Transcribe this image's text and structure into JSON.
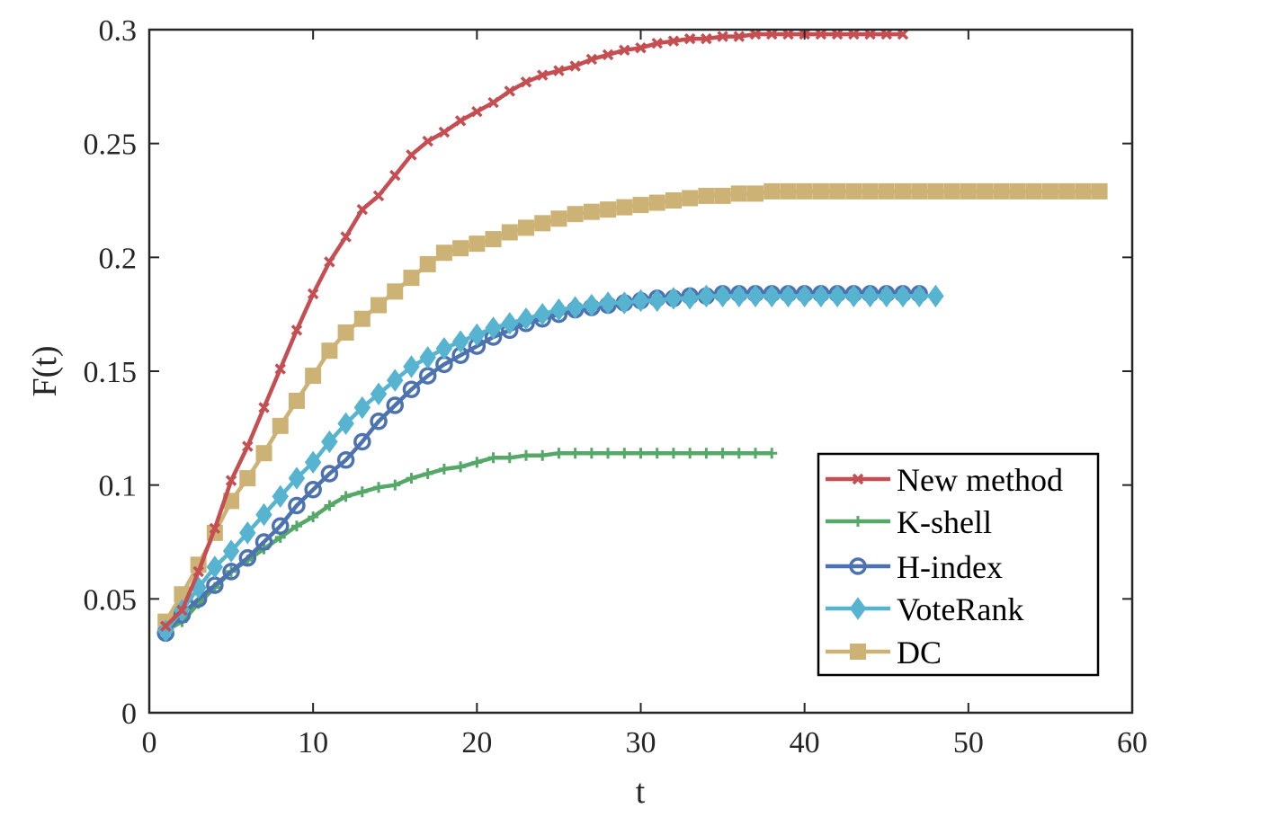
{
  "chart_data": {
    "type": "line",
    "xlabel": "t",
    "ylabel": "F(t)",
    "xlim": [
      0,
      60
    ],
    "ylim": [
      0,
      0.3
    ],
    "xticks": [
      0,
      10,
      20,
      30,
      40,
      50,
      60
    ],
    "xtick_labels": [
      "0",
      "10",
      "20",
      "30",
      "40",
      "50",
      "60"
    ],
    "yticks": [
      0,
      0.05,
      0.1,
      0.15,
      0.2,
      0.25,
      0.3
    ],
    "ytick_labels": [
      "0",
      "0.05",
      "0.1",
      "0.15",
      "0.2",
      "0.25",
      "0.3"
    ],
    "grid": false,
    "legend_position": "lower-right",
    "series": [
      {
        "name": "New method",
        "color": "#c44e52",
        "marker": "x",
        "x": [
          1,
          2,
          3,
          4,
          5,
          6,
          7,
          8,
          9,
          10,
          11,
          12,
          13,
          14,
          15,
          16,
          17,
          18,
          19,
          20,
          21,
          22,
          23,
          24,
          25,
          26,
          27,
          28,
          29,
          30,
          31,
          32,
          33,
          34,
          35,
          36,
          37,
          38,
          39,
          40,
          41,
          42,
          43,
          44,
          45,
          46
        ],
        "values": [
          0.038,
          0.045,
          0.062,
          0.081,
          0.102,
          0.117,
          0.134,
          0.151,
          0.168,
          0.184,
          0.198,
          0.209,
          0.221,
          0.227,
          0.236,
          0.245,
          0.251,
          0.255,
          0.26,
          0.264,
          0.268,
          0.273,
          0.277,
          0.28,
          0.282,
          0.284,
          0.287,
          0.289,
          0.291,
          0.292,
          0.294,
          0.295,
          0.296,
          0.296,
          0.297,
          0.297,
          0.298,
          0.298,
          0.298,
          0.298,
          0.298,
          0.298,
          0.298,
          0.298,
          0.298,
          0.298
        ]
      },
      {
        "name": "K-shell",
        "color": "#55a868",
        "marker": "plus",
        "x": [
          1,
          2,
          3,
          4,
          5,
          6,
          7,
          8,
          9,
          10,
          11,
          12,
          13,
          14,
          15,
          16,
          17,
          18,
          19,
          20,
          21,
          22,
          23,
          24,
          25,
          26,
          27,
          28,
          29,
          30,
          31,
          32,
          33,
          34,
          35,
          36,
          37,
          38
        ],
        "values": [
          0.036,
          0.04,
          0.048,
          0.055,
          0.062,
          0.067,
          0.072,
          0.077,
          0.082,
          0.086,
          0.091,
          0.095,
          0.097,
          0.099,
          0.1,
          0.103,
          0.105,
          0.107,
          0.108,
          0.11,
          0.112,
          0.112,
          0.113,
          0.113,
          0.114,
          0.114,
          0.114,
          0.114,
          0.114,
          0.114,
          0.114,
          0.114,
          0.114,
          0.114,
          0.114,
          0.114,
          0.114,
          0.114
        ]
      },
      {
        "name": "H-index",
        "color": "#4c72b0",
        "marker": "circle",
        "x": [
          1,
          2,
          3,
          4,
          5,
          6,
          7,
          8,
          9,
          10,
          11,
          12,
          13,
          14,
          15,
          16,
          17,
          18,
          19,
          20,
          21,
          22,
          23,
          24,
          25,
          26,
          27,
          28,
          29,
          30,
          31,
          32,
          33,
          34,
          35,
          36,
          37,
          38,
          39,
          40,
          41,
          42,
          43,
          44,
          45,
          46,
          47
        ],
        "values": [
          0.035,
          0.043,
          0.05,
          0.056,
          0.062,
          0.068,
          0.075,
          0.082,
          0.091,
          0.098,
          0.105,
          0.111,
          0.119,
          0.128,
          0.135,
          0.142,
          0.148,
          0.153,
          0.157,
          0.161,
          0.165,
          0.168,
          0.171,
          0.173,
          0.175,
          0.177,
          0.178,
          0.179,
          0.18,
          0.181,
          0.182,
          0.182,
          0.183,
          0.183,
          0.184,
          0.184,
          0.184,
          0.184,
          0.184,
          0.184,
          0.184,
          0.184,
          0.184,
          0.184,
          0.184,
          0.184,
          0.184
        ]
      },
      {
        "name": "VoteRank",
        "color": "#56b4d0",
        "marker": "diamond",
        "x": [
          1,
          2,
          3,
          4,
          5,
          6,
          7,
          8,
          9,
          10,
          11,
          12,
          13,
          14,
          15,
          16,
          17,
          18,
          19,
          20,
          21,
          22,
          23,
          24,
          25,
          26,
          27,
          28,
          29,
          30,
          31,
          32,
          33,
          34,
          35,
          36,
          37,
          38,
          39,
          40,
          41,
          42,
          43,
          44,
          45,
          46,
          47,
          48
        ],
        "values": [
          0.036,
          0.045,
          0.055,
          0.064,
          0.071,
          0.079,
          0.087,
          0.095,
          0.103,
          0.11,
          0.119,
          0.127,
          0.134,
          0.14,
          0.146,
          0.152,
          0.156,
          0.16,
          0.163,
          0.166,
          0.169,
          0.171,
          0.173,
          0.175,
          0.177,
          0.178,
          0.179,
          0.18,
          0.18,
          0.181,
          0.181,
          0.182,
          0.182,
          0.183,
          0.183,
          0.183,
          0.183,
          0.183,
          0.183,
          0.183,
          0.183,
          0.183,
          0.183,
          0.183,
          0.183,
          0.183,
          0.183,
          0.183
        ]
      },
      {
        "name": "DC",
        "color": "#ccb275",
        "marker": "square",
        "x": [
          1,
          2,
          3,
          4,
          5,
          6,
          7,
          8,
          9,
          10,
          11,
          12,
          13,
          14,
          15,
          16,
          17,
          18,
          19,
          20,
          21,
          22,
          23,
          24,
          25,
          26,
          27,
          28,
          29,
          30,
          31,
          32,
          33,
          34,
          35,
          36,
          37,
          38,
          39,
          40,
          41,
          42,
          43,
          44,
          45,
          46,
          47,
          48,
          49,
          50,
          51,
          52,
          53,
          54,
          55,
          56,
          57,
          58
        ],
        "values": [
          0.04,
          0.052,
          0.065,
          0.079,
          0.093,
          0.103,
          0.114,
          0.126,
          0.137,
          0.148,
          0.159,
          0.167,
          0.173,
          0.179,
          0.185,
          0.191,
          0.197,
          0.202,
          0.204,
          0.206,
          0.208,
          0.211,
          0.213,
          0.215,
          0.217,
          0.219,
          0.22,
          0.221,
          0.222,
          0.223,
          0.224,
          0.225,
          0.226,
          0.227,
          0.227,
          0.228,
          0.228,
          0.229,
          0.229,
          0.229,
          0.229,
          0.229,
          0.229,
          0.229,
          0.229,
          0.229,
          0.229,
          0.229,
          0.229,
          0.229,
          0.229,
          0.229,
          0.229,
          0.229,
          0.229,
          0.229,
          0.229,
          0.229
        ]
      }
    ]
  }
}
